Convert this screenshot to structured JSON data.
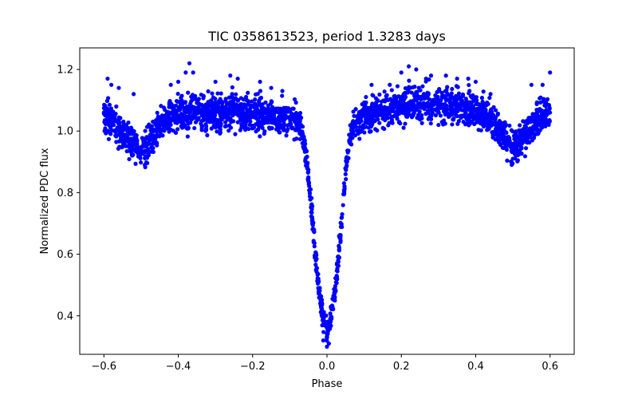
{
  "chart_data": {
    "type": "scatter",
    "title": "TIC 0358613523, period 1.3283 days",
    "xlabel": "Phase",
    "ylabel": "Normalized PDC flux",
    "xlim": [
      -0.665,
      0.665
    ],
    "ylim": [
      0.275,
      1.27
    ],
    "xticks": [
      -0.6,
      -0.4,
      -0.2,
      0.0,
      0.2,
      0.4,
      0.6
    ],
    "xtick_labels": [
      "−0.6",
      "−0.4",
      "−0.2",
      "0.0",
      "0.2",
      "0.4",
      "0.6"
    ],
    "yticks": [
      0.4,
      0.6,
      0.8,
      1.0,
      1.2
    ],
    "ytick_labels": [
      "0.4",
      "0.6",
      "0.8",
      "1.0",
      "1.2"
    ],
    "grid": false,
    "legend": "none",
    "marker_color": "#0000ff",
    "series": [
      {
        "x": [
          -0.6,
          -0.58,
          -0.56,
          -0.54,
          -0.52,
          -0.5,
          -0.48,
          -0.46,
          -0.44,
          -0.42,
          -0.4,
          -0.35,
          -0.3,
          -0.25,
          -0.2,
          -0.15,
          -0.1,
          -0.08,
          -0.07,
          -0.06,
          -0.05,
          -0.04,
          -0.03,
          -0.02,
          -0.01,
          0.0,
          0.01,
          0.02,
          0.03,
          0.04,
          0.05,
          0.06,
          0.07,
          0.08,
          0.1,
          0.15,
          0.2,
          0.25,
          0.3,
          0.35,
          0.4,
          0.42,
          0.44,
          0.46,
          0.48,
          0.5,
          0.52,
          0.54,
          0.56,
          0.58,
          0.6
        ],
        "y": [
          1.06,
          1.03,
          1.0,
          0.98,
          0.96,
          0.93,
          0.96,
          1.0,
          1.03,
          1.04,
          1.05,
          1.06,
          1.06,
          1.06,
          1.06,
          1.05,
          1.04,
          1.03,
          1.02,
          0.95,
          0.85,
          0.72,
          0.58,
          0.47,
          0.39,
          0.34,
          0.39,
          0.47,
          0.58,
          0.72,
          0.86,
          0.97,
          1.01,
          1.03,
          1.05,
          1.07,
          1.08,
          1.09,
          1.09,
          1.08,
          1.07,
          1.06,
          1.04,
          1.01,
          0.98,
          0.95,
          0.97,
          1.0,
          1.03,
          1.05,
          1.06
        ]
      }
    ],
    "outliers": [
      {
        "x": -0.37,
        "y": 1.22
      },
      {
        "x": -0.36,
        "y": 1.19
      },
      {
        "x": -0.38,
        "y": 1.19
      },
      {
        "x": -0.4,
        "y": 1.16
      },
      {
        "x": -0.42,
        "y": 1.15
      },
      {
        "x": -0.59,
        "y": 1.17
      },
      {
        "x": -0.58,
        "y": 1.15
      },
      {
        "x": -0.56,
        "y": 1.14
      },
      {
        "x": -0.52,
        "y": 1.12
      },
      {
        "x": -0.26,
        "y": 1.18
      },
      {
        "x": -0.24,
        "y": 1.17
      },
      {
        "x": -0.3,
        "y": 1.16
      },
      {
        "x": -0.18,
        "y": 1.16
      },
      {
        "x": -0.15,
        "y": 1.14
      },
      {
        "x": -0.12,
        "y": 1.13
      },
      {
        "x": 0.22,
        "y": 1.21
      },
      {
        "x": 0.24,
        "y": 1.2
      },
      {
        "x": 0.2,
        "y": 1.19
      },
      {
        "x": 0.28,
        "y": 1.18
      },
      {
        "x": 0.32,
        "y": 1.18
      },
      {
        "x": 0.35,
        "y": 1.17
      },
      {
        "x": 0.38,
        "y": 1.17
      },
      {
        "x": 0.4,
        "y": 1.16
      },
      {
        "x": 0.12,
        "y": 1.15
      },
      {
        "x": 0.55,
        "y": 1.15
      },
      {
        "x": 0.58,
        "y": 1.15
      },
      {
        "x": 0.6,
        "y": 1.19
      },
      {
        "x": 0.44,
        "y": 1.12
      },
      {
        "x": 0.5,
        "y": 0.91
      },
      {
        "x": -0.49,
        "y": 0.89
      },
      {
        "x": 0.0,
        "y": 0.3
      },
      {
        "x": -0.01,
        "y": 0.32
      },
      {
        "x": 0.005,
        "y": 0.31
      }
    ]
  }
}
